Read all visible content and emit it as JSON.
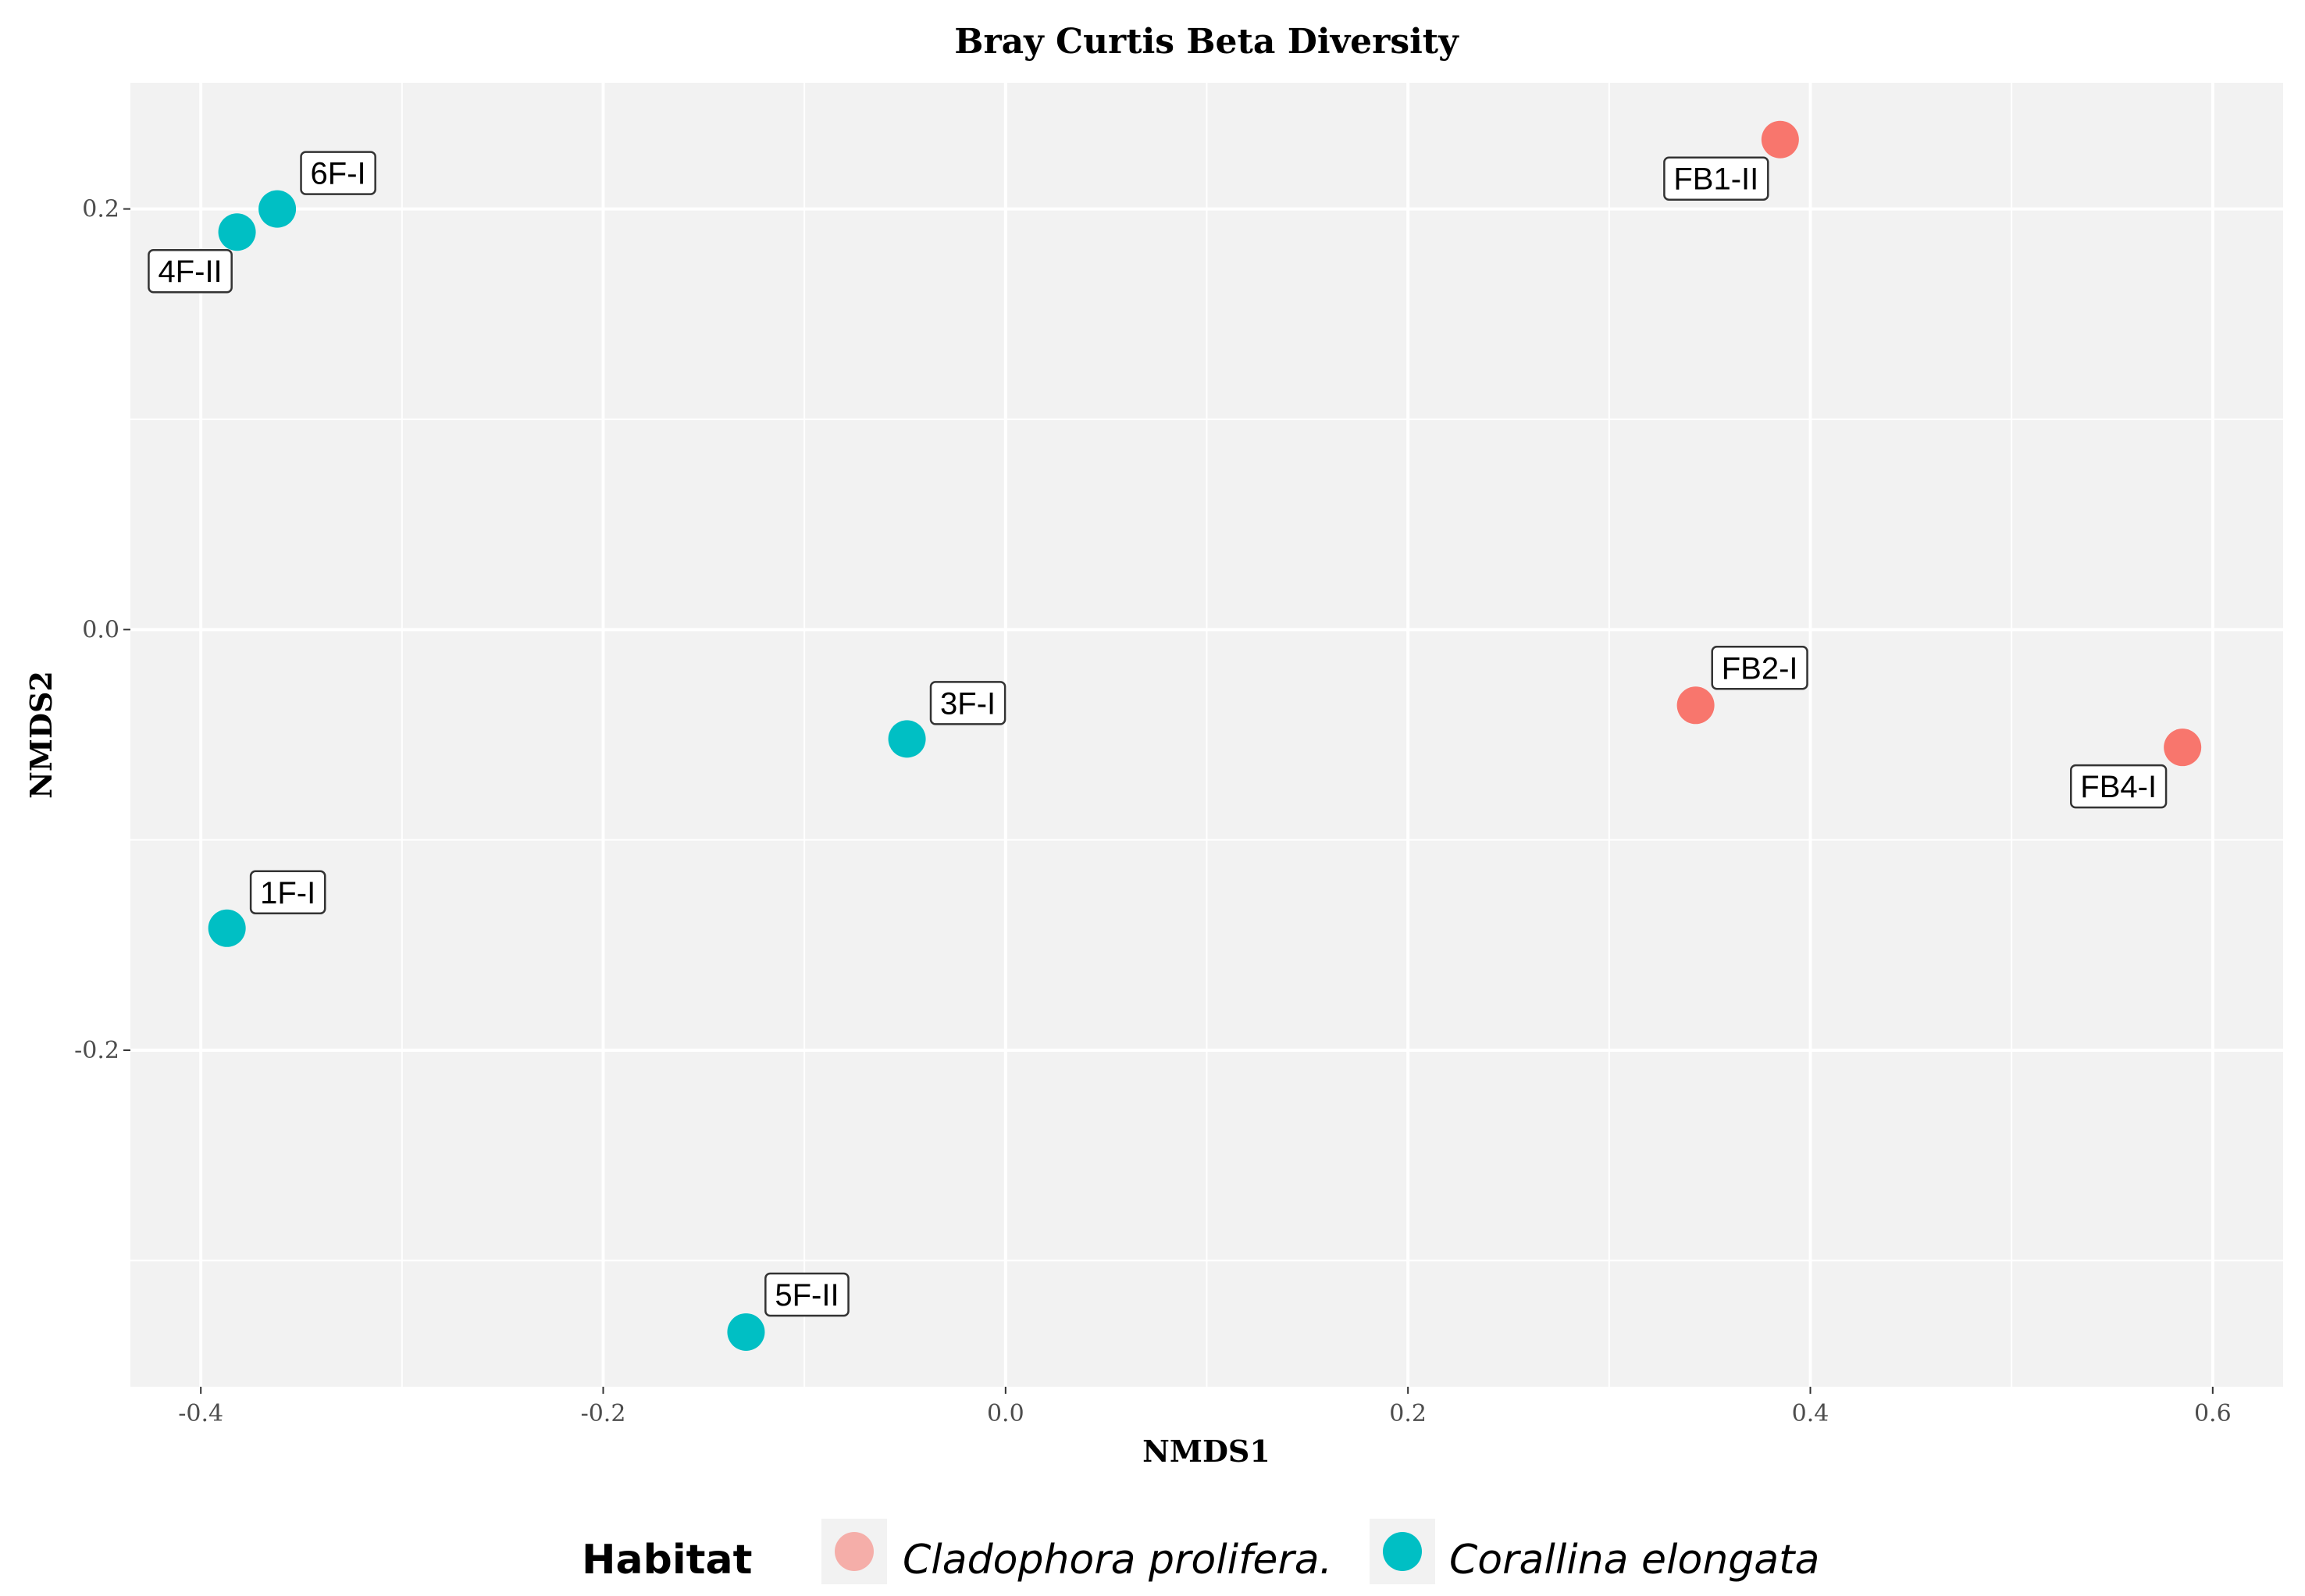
{
  "chart_data": {
    "type": "scatter",
    "title": "Bray Curtis Beta Diversity",
    "xlabel": "NMDS1",
    "ylabel": "NMDS2",
    "xlim": [
      -0.435,
      0.635
    ],
    "ylim": [
      -0.36,
      0.26
    ],
    "xticks": [
      -0.4,
      -0.2,
      0.0,
      0.2,
      0.4,
      0.6
    ],
    "xtick_labels": [
      "-0.4",
      "-0.2",
      "0.0",
      "0.2",
      "0.4",
      "0.6"
    ],
    "yticks": [
      -0.2,
      0.0,
      0.2
    ],
    "ytick_labels": [
      "-0.2",
      "0.0",
      "0.2"
    ],
    "grid": true,
    "legend_position": "bottom",
    "legend_title": "Habitat",
    "series": [
      {
        "name": "Cladophora prolifera.",
        "color": "#F8766D",
        "points": [
          {
            "label": "FB1-II",
            "x": 0.385,
            "y": 0.233
          },
          {
            "label": "FB2-I",
            "x": 0.343,
            "y": -0.036
          },
          {
            "label": "FB4-I",
            "x": 0.585,
            "y": -0.056
          }
        ]
      },
      {
        "name": "Corallina elongata",
        "color": "#00BFC4",
        "points": [
          {
            "label": "6F-I",
            "x": -0.362,
            "y": 0.2
          },
          {
            "label": "4F-II",
            "x": -0.382,
            "y": 0.189
          },
          {
            "label": "3F-I",
            "x": -0.049,
            "y": -0.052
          },
          {
            "label": "1F-I",
            "x": -0.387,
            "y": -0.142
          },
          {
            "label": "5F-II",
            "x": -0.129,
            "y": -0.334
          }
        ]
      }
    ]
  }
}
